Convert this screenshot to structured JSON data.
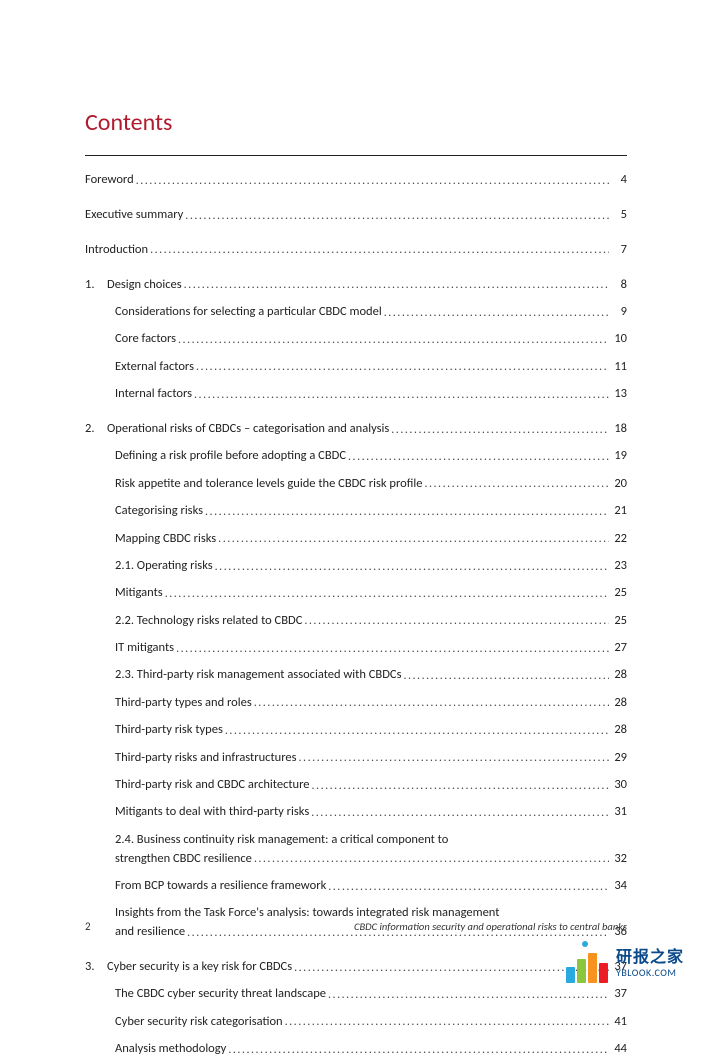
{
  "title": {
    "text": "Contents",
    "color": "#b01c2e"
  },
  "leader_char": ".",
  "entries": [
    {
      "num": "",
      "label": "Foreword",
      "page": "4",
      "indent": 0,
      "spaced": true
    },
    {
      "num": "",
      "label": "Executive summary",
      "page": "5",
      "indent": 0,
      "spaced": true
    },
    {
      "num": "",
      "label": "Introduction",
      "page": "7",
      "indent": 0,
      "spaced": true
    },
    {
      "num": "1.",
      "label": "Design choices",
      "page": "8",
      "indent": 1,
      "spaced": false
    },
    {
      "num": "",
      "label": "Considerations for selecting a particular CBDC model",
      "page": "9",
      "indent": 2,
      "spaced": false
    },
    {
      "num": "",
      "label": "Core factors",
      "page": "10",
      "indent": 2,
      "spaced": false
    },
    {
      "num": "",
      "label": "External factors",
      "page": "11",
      "indent": 2,
      "spaced": false
    },
    {
      "num": "",
      "label": "Internal factors",
      "page": "13",
      "indent": 2,
      "spaced": true
    },
    {
      "num": "2.",
      "label": "Operational risks of CBDCs – categorisation and analysis",
      "page": "18",
      "indent": 1,
      "spaced": false
    },
    {
      "num": "",
      "label": "Defining a risk profile before adopting a CBDC",
      "page": "19",
      "indent": 2,
      "spaced": false
    },
    {
      "num": "",
      "label": "Risk appetite and tolerance levels guide the CBDC risk profile",
      "page": "20",
      "indent": 2,
      "spaced": false
    },
    {
      "num": "",
      "label": "Categorising risks",
      "page": "21",
      "indent": 2,
      "spaced": false
    },
    {
      "num": "",
      "label": "Mapping CBDC risks",
      "page": "22",
      "indent": 2,
      "spaced": false
    },
    {
      "num": "",
      "label": "2.1.  Operating risks",
      "page": "23",
      "indent": 2,
      "spaced": false
    },
    {
      "num": "",
      "label": "Mitigants",
      "page": "25",
      "indent": 2,
      "spaced": false
    },
    {
      "num": "",
      "label": "2.2.  Technology risks related to CBDC",
      "page": "25",
      "indent": 2,
      "spaced": false
    },
    {
      "num": "",
      "label": "IT mitigants",
      "page": "27",
      "indent": 2,
      "spaced": false
    },
    {
      "num": "",
      "label": "2.3.  Third-party risk management associated with CBDCs",
      "page": "28",
      "indent": 2,
      "spaced": false
    },
    {
      "num": "",
      "label": "Third-party types and roles",
      "page": "28",
      "indent": 2,
      "spaced": false
    },
    {
      "num": "",
      "label": "Third-party risk types",
      "page": "28",
      "indent": 2,
      "spaced": false
    },
    {
      "num": "",
      "label": "Third-party risks and infrastructures",
      "page": "29",
      "indent": 2,
      "spaced": false
    },
    {
      "num": "",
      "label": "Third-party risk and CBDC architecture",
      "page": "30",
      "indent": 2,
      "spaced": false
    },
    {
      "num": "",
      "label": "Mitigants to deal with third-party risks",
      "page": "31",
      "indent": 2,
      "spaced": false
    },
    {
      "num": "",
      "label_multi": [
        "2.4.  Business continuity risk management: a critical component to",
        "strengthen CBDC resilience"
      ],
      "page": "32",
      "indent": 2,
      "spaced": false
    },
    {
      "num": "",
      "label": "From BCP towards a resilience framework",
      "page": "34",
      "indent": 2,
      "spaced": false
    },
    {
      "num": "",
      "label_multi": [
        "Insights from the Task Force's analysis: towards integrated risk management",
        "and resilience"
      ],
      "page": "36",
      "indent": 2,
      "spaced": true
    },
    {
      "num": "3.",
      "label": "Cyber security is a key risk for CBDCs",
      "page": "37",
      "indent": 1,
      "spaced": false
    },
    {
      "num": "",
      "label": "The CBDC cyber security threat landscape",
      "page": "37",
      "indent": 2,
      "spaced": false
    },
    {
      "num": "",
      "label": "Cyber security risk categorisation",
      "page": "41",
      "indent": 2,
      "spaced": false
    },
    {
      "num": "",
      "label": "Analysis methodology",
      "page": "44",
      "indent": 2,
      "spaced": false
    }
  ],
  "footer": {
    "page_number": "2",
    "doc_title": "CBDC information security and operational risks to central banks"
  },
  "watermark": {
    "cn": "研报之家",
    "en": "YBLOOK.COM",
    "bar_colors": [
      "#2aa9e0",
      "#8cc63f",
      "#f7931e",
      "#ed1c24"
    ]
  }
}
